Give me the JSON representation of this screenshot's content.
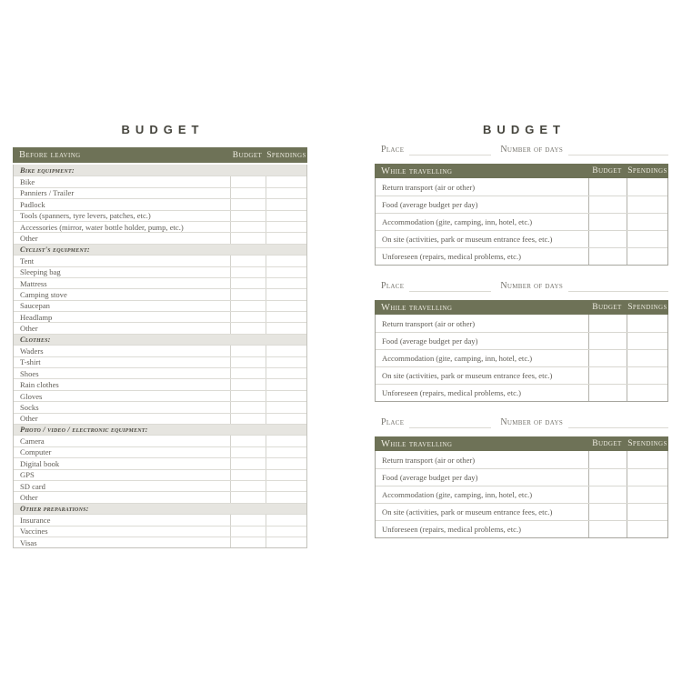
{
  "colors": {
    "page_bg": "#ffffff",
    "olive_header_bg": "#6e7257",
    "header_text": "#eeece1",
    "section_row_bg": "#e6e5e0",
    "body_text": "#5f5c55",
    "title_text": "#45443c"
  },
  "left_page": {
    "title": "BUDGET",
    "table": {
      "header": {
        "label": "Before leaving",
        "budget": "Budget",
        "spendings": "Spendings"
      },
      "sections": [
        {
          "label": "Bike equipment:",
          "items": [
            "Bike",
            "Panniers / Trailer",
            "Padlock",
            "Tools (spanners, tyre levers, patches, etc.)",
            "Accessories (mirror, water bottle holder, pump, etc.)",
            "Other"
          ]
        },
        {
          "label": "Cyclist's equipment:",
          "items": [
            "Tent",
            "Sleeping bag",
            "Mattress",
            "Camping stove",
            "Saucepan",
            "Headlamp",
            "Other"
          ]
        },
        {
          "label": "Clothes:",
          "items": [
            "Waders",
            "T-shirt",
            "Shoes",
            "Rain clothes",
            "Gloves",
            "Socks",
            "Other"
          ]
        },
        {
          "label": "Photo / video / electronic equipment:",
          "items": [
            "Camera",
            "Computer",
            "Digital book",
            "GPS",
            "SD card",
            "Other"
          ]
        },
        {
          "label": "Other preparations:",
          "items": [
            "Insurance",
            "Vaccines",
            "Visas"
          ]
        }
      ]
    }
  },
  "right_page": {
    "title": "BUDGET",
    "blocks": [
      {
        "place_label": "Place",
        "days_label": "Number of days",
        "header": {
          "label": "While travelling",
          "budget": "Budget",
          "spendings": "Spendings"
        },
        "items": [
          "Return transport (air or other)",
          "Food (average budget per day)",
          "Accommodation (gite, camping, inn, hotel, etc.)",
          "On site (activities, park or museum entrance fees, etc.)",
          "Unforeseen (repairs, medical problems, etc.)"
        ]
      },
      {
        "place_label": "Place",
        "days_label": "Number of days",
        "header": {
          "label": "While travelling",
          "budget": "Budget",
          "spendings": "Spendings"
        },
        "items": [
          "Return transport (air or other)",
          "Food (average budget per day)",
          "Accommodation (gite, camping, inn, hotel, etc.)",
          "On site (activities, park or museum entrance fees, etc.)",
          "Unforeseen (repairs, medical problems, etc.)"
        ]
      },
      {
        "place_label": "Place",
        "days_label": "Number of days",
        "header": {
          "label": "While travelling",
          "budget": "Budget",
          "spendings": "Spendings"
        },
        "items": [
          "Return transport (air or other)",
          "Food (average budget per day)",
          "Accommodation (gite, camping, inn, hotel, etc.)",
          "On site (activities, park or museum entrance fees, etc.)",
          "Unforeseen (repairs, medical problems, etc.)"
        ]
      }
    ]
  }
}
